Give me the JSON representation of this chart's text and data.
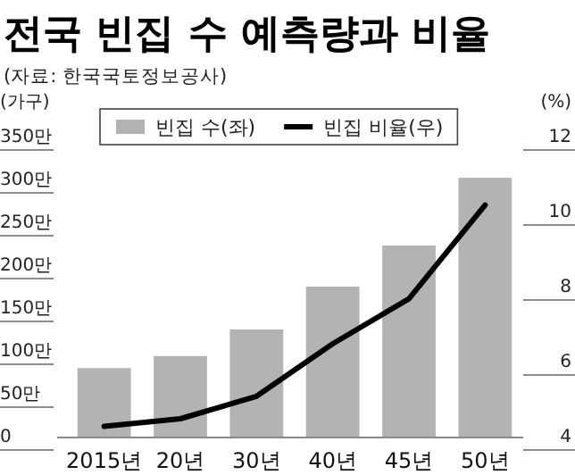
{
  "chart_data": {
    "type": "bar",
    "title": "전국 빈집 수 예측량과 비율",
    "subtitle": "(자료: 한국국토정보공사)",
    "ylabel": "(가구)",
    "y2label": "(%)",
    "categories": [
      "2015년",
      "20년",
      "30년",
      "40년",
      "45년",
      "50년"
    ],
    "series": [
      {
        "name": "빈집 수(좌)",
        "color": "#b3b3b3",
        "values": [
          81,
          95,
          126,
          176,
          224,
          303
        ]
      },
      {
        "name": "빈집 비율(우)",
        "type": "line",
        "axis": "y2",
        "color": "#000000",
        "values": [
          4.3,
          4.5,
          5.1,
          6.5,
          7.7,
          10.2
        ]
      }
    ],
    "ylim": [
      0,
      350
    ],
    "yticks": [
      0,
      {
        "value": 50,
        "label": "50만"
      },
      {
        "value": 100,
        "label": "100만"
      },
      {
        "value": 150,
        "label": "150만"
      },
      {
        "value": 200,
        "label": "200만"
      },
      {
        "value": 250,
        "label": "250만"
      },
      {
        "value": 300,
        "label": "300만"
      },
      {
        "value": 350,
        "label": "350만"
      }
    ],
    "y2lim": [
      4,
      12
    ],
    "y2ticks": [
      4,
      6,
      8,
      10,
      12
    ],
    "legend": "top",
    "grid": false,
    "marker": "none",
    "line_style": "solid"
  }
}
